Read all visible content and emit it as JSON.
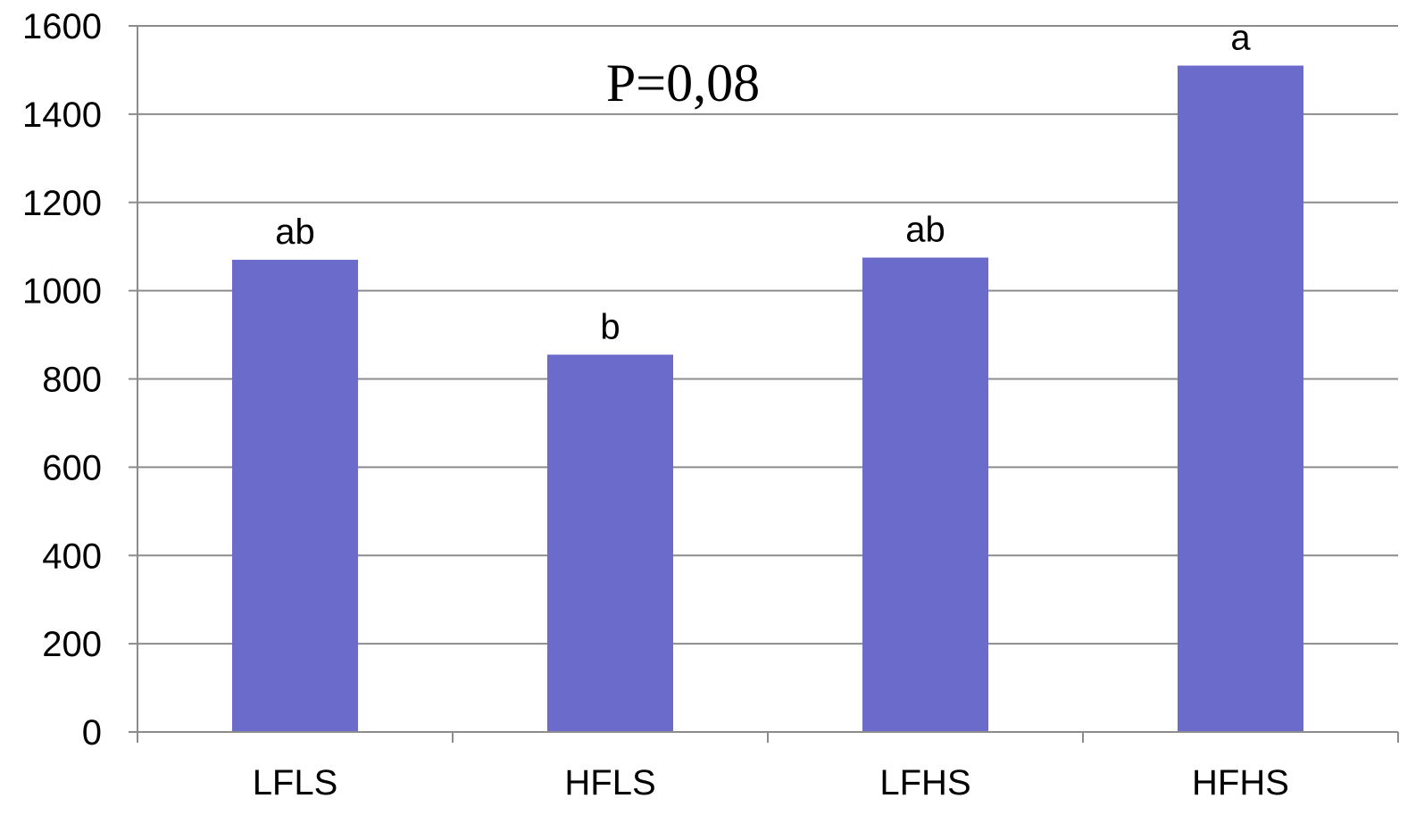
{
  "chart_data": {
    "type": "bar",
    "categories": [
      "LFLS",
      "HFLS",
      "LFHS",
      "HFHS"
    ],
    "values": [
      1070,
      855,
      1075,
      1510
    ],
    "data_labels": [
      "ab",
      "b",
      "ab",
      "a"
    ],
    "annotation": "P=0,08",
    "ylim": [
      0,
      1600
    ],
    "yticks": [
      0,
      200,
      400,
      600,
      800,
      1000,
      1200,
      1400,
      1600
    ],
    "grid": true,
    "bar_color": "#6b6bcc",
    "grid_color": "#8c8c8c"
  }
}
